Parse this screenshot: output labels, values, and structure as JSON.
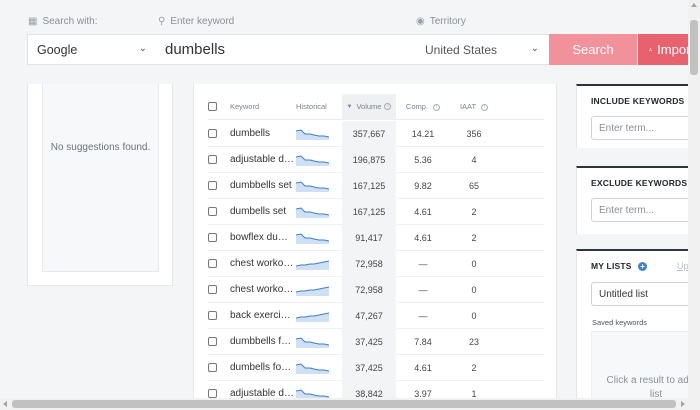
{
  "search": {
    "engine_label": "Search with:",
    "engine_value": "Google",
    "keyword_label": "Enter keyword",
    "keyword_value": "dumbells",
    "territory_label": "Territory",
    "territory_value": "United States",
    "search_button": "Search",
    "import_button": "Import"
  },
  "suggestions": {
    "empty_text": "No suggestions found."
  },
  "table": {
    "headers": {
      "keyword": "Keyword",
      "historical": "Historical",
      "volume": "Volume",
      "comp": "Comp.",
      "iaat": "IAAT"
    },
    "rows": [
      {
        "keyword": "dumbells",
        "volume": "357,667",
        "comp": "14.21",
        "iaat": "356",
        "trend": "down"
      },
      {
        "keyword": "adjustable dumbbells",
        "volume": "196,875",
        "comp": "5.36",
        "iaat": "4",
        "trend": "down"
      },
      {
        "keyword": "dumbbells set",
        "volume": "167,125",
        "comp": "9.82",
        "iaat": "65",
        "trend": "down"
      },
      {
        "keyword": "dumbells set",
        "volume": "167,125",
        "comp": "4.61",
        "iaat": "2",
        "trend": "down"
      },
      {
        "keyword": "bowflex dumbbells",
        "volume": "91,417",
        "comp": "4.61",
        "iaat": "2",
        "trend": "down"
      },
      {
        "keyword": "chest workout with dumbbells",
        "volume": "72,958",
        "comp": "—",
        "iaat": "0",
        "trend": "up"
      },
      {
        "keyword": "chest workout dumbbells",
        "volume": "72,958",
        "comp": "—",
        "iaat": "0",
        "trend": "up"
      },
      {
        "keyword": "back exercises with dumbbells",
        "volume": "47,267",
        "comp": "—",
        "iaat": "0",
        "trend": "up"
      },
      {
        "keyword": "dumbbells for sale",
        "volume": "37,425",
        "comp": "7.84",
        "iaat": "23",
        "trend": "down"
      },
      {
        "keyword": "dumbells for sale",
        "volume": "37,425",
        "comp": "4.61",
        "iaat": "2",
        "trend": "down"
      },
      {
        "keyword": "adjustable dumbells",
        "volume": "38,842",
        "comp": "3.97",
        "iaat": "1",
        "trend": "down"
      }
    ]
  },
  "include": {
    "title": "INCLUDE KEYWORDS",
    "placeholder": "Enter term..."
  },
  "exclude": {
    "title": "EXCLUDE KEYWORDS",
    "placeholder": "Enter term..."
  },
  "lists": {
    "title": "MY LISTS",
    "link": "Upload",
    "selected": "Untitled list",
    "saved_label": "Saved keywords",
    "drop_text": "Click a result to add to list"
  },
  "colors": {
    "search_button": "#f0919b",
    "import_button": "#e8616f",
    "sparkline": "#3d7fc4",
    "accent": "#3f82c9"
  }
}
